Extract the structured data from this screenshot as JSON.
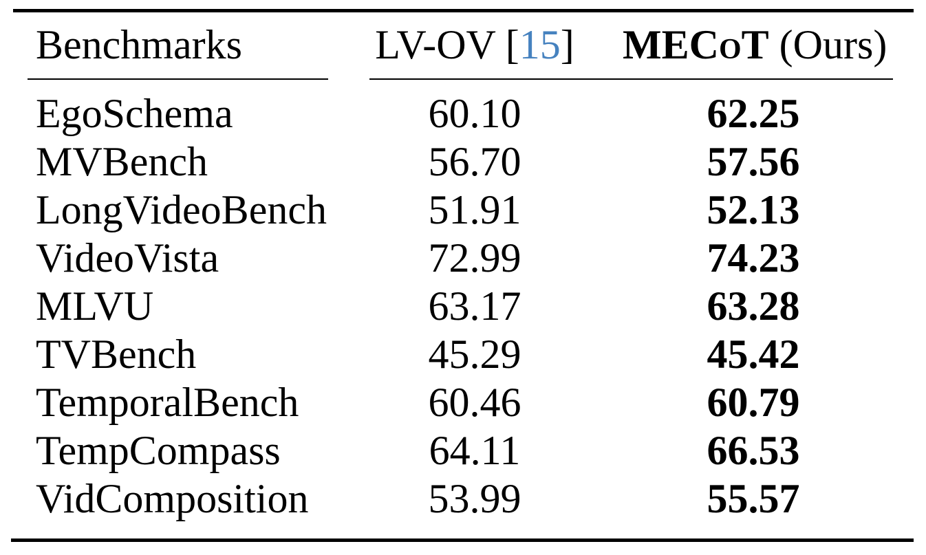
{
  "table": {
    "header": {
      "benchmarks": "Benchmarks",
      "lvov_prefix": "LV-OV [",
      "lvov_citation": "15",
      "lvov_suffix": "]",
      "mecot_name": "MECoT",
      "mecot_suffix": " (Ours)"
    },
    "rows": [
      {
        "benchmark": "EgoSchema",
        "lvov": "60.10",
        "mecot": "62.25"
      },
      {
        "benchmark": "MVBench",
        "lvov": "56.70",
        "mecot": "57.56"
      },
      {
        "benchmark": "LongVideoBench",
        "lvov": "51.91",
        "mecot": "52.13"
      },
      {
        "benchmark": "VideoVista",
        "lvov": "72.99",
        "mecot": "74.23"
      },
      {
        "benchmark": "MLVU",
        "lvov": "63.17",
        "mecot": "63.28"
      },
      {
        "benchmark": "TVBench",
        "lvov": "45.29",
        "mecot": "45.42"
      },
      {
        "benchmark": "TemporalBench",
        "lvov": "60.46",
        "mecot": "60.79"
      },
      {
        "benchmark": "TempCompass",
        "lvov": "64.11",
        "mecot": "66.53"
      },
      {
        "benchmark": "VidComposition",
        "lvov": "53.99",
        "mecot": "55.57"
      }
    ]
  },
  "colors": {
    "text": "#000000",
    "background": "#ffffff",
    "citation_blue": "#4682bf"
  }
}
